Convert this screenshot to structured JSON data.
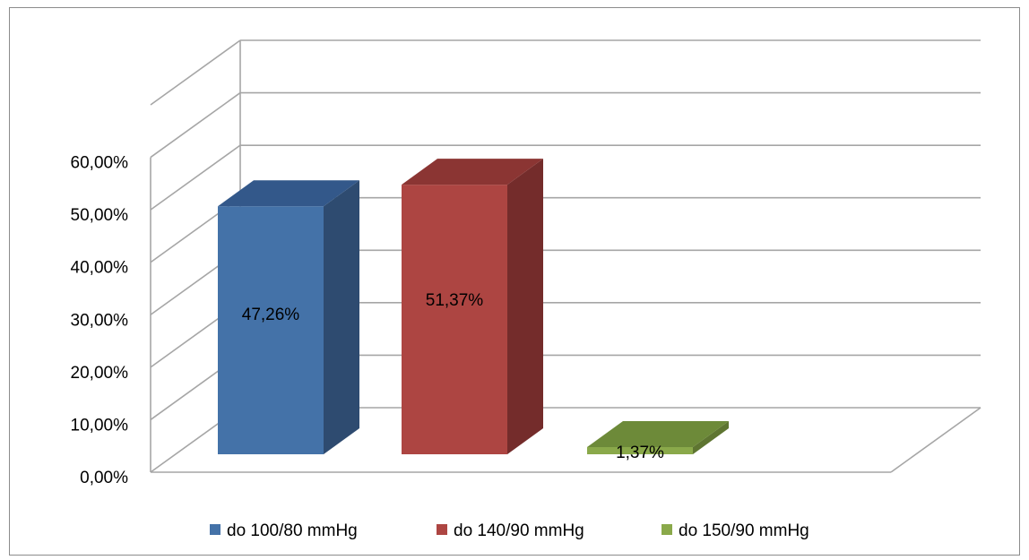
{
  "chart_data": {
    "type": "bar",
    "categories": [
      "do 100/80 mmHg",
      "do 140/90 mmHg",
      "do 150/90 mmHg"
    ],
    "values": [
      47.26,
      51.37,
      1.37
    ],
    "data_labels": [
      "47,26%",
      "51,37%",
      "1,37%"
    ],
    "y_ticks": [
      "0,00%",
      "10,00%",
      "20,00%",
      "30,00%",
      "40,00%",
      "50,00%",
      "60,00%"
    ],
    "ylim": [
      0,
      70
    ],
    "grid": true,
    "three_d": true,
    "legend": {
      "placement": "bottom",
      "entries": [
        "do 100/80 mmHg",
        "do 140/90 mmHg",
        "do 150/90 mmHg"
      ]
    },
    "colors": {
      "series": [
        "#4472a8",
        "#ad4542",
        "#8aa94a"
      ],
      "series_side": [
        "#2e4b70",
        "#742c2b",
        "#5e7531"
      ],
      "series_top": [
        "#33588a",
        "#8b3533",
        "#6d8a39"
      ],
      "grid": "#a6a6a6"
    }
  }
}
